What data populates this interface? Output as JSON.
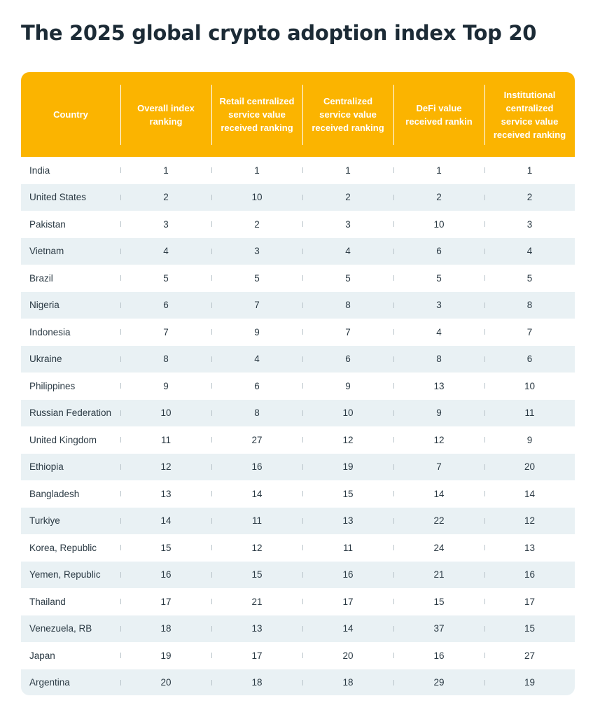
{
  "title": "The 2025 global crypto adoption index Top 20",
  "colors": {
    "header_bg": "#fbb400",
    "header_text": "#ffffff",
    "row_alt_bg": "#e9f1f4",
    "body_text": "#2b3a44",
    "title_text": "#1c2b36"
  },
  "table": {
    "columns": [
      "Country",
      "Overall index ranking",
      "Retail centralized service value received ranking",
      "Centralized service value received ranking",
      "DeFi value received rankin",
      "Institutional centralized service value received ranking"
    ],
    "rows": [
      [
        "India",
        "1",
        "1",
        "1",
        "1",
        "1"
      ],
      [
        "United States",
        "2",
        "10",
        "2",
        "2",
        "2"
      ],
      [
        "Pakistan",
        "3",
        "2",
        "3",
        "10",
        "3"
      ],
      [
        "Vietnam",
        "4",
        "3",
        "4",
        "6",
        "4"
      ],
      [
        "Brazil",
        "5",
        "5",
        "5",
        "5",
        "5"
      ],
      [
        "Nigeria",
        "6",
        "7",
        "8",
        "3",
        "8"
      ],
      [
        "Indonesia",
        "7",
        "9",
        "7",
        "4",
        "7"
      ],
      [
        "Ukraine",
        "8",
        "4",
        "6",
        "8",
        "6"
      ],
      [
        "Philippines",
        "9",
        "6",
        "9",
        "13",
        "10"
      ],
      [
        "Russian Federation",
        "10",
        "8",
        "10",
        "9",
        "11"
      ],
      [
        "United Kingdom",
        "11",
        "27",
        "12",
        "12",
        "9"
      ],
      [
        "Ethiopia",
        "12",
        "16",
        "19",
        "7",
        "20"
      ],
      [
        "Bangladesh",
        "13",
        "14",
        "15",
        "14",
        "14"
      ],
      [
        "Turkiye",
        "14",
        "11",
        "13",
        "22",
        "12"
      ],
      [
        "Korea, Republic",
        "15",
        "12",
        "11",
        "24",
        "13"
      ],
      [
        "Yemen, Republic",
        "16",
        "15",
        "16",
        "21",
        "16"
      ],
      [
        "Thailand",
        "17",
        "21",
        "17",
        "15",
        "17"
      ],
      [
        "Venezuela, RB",
        "18",
        "13",
        "14",
        "37",
        "15"
      ],
      [
        "Japan",
        "19",
        "17",
        "20",
        "16",
        "27"
      ],
      [
        "Argentina",
        "20",
        "18",
        "18",
        "29",
        "19"
      ]
    ]
  }
}
